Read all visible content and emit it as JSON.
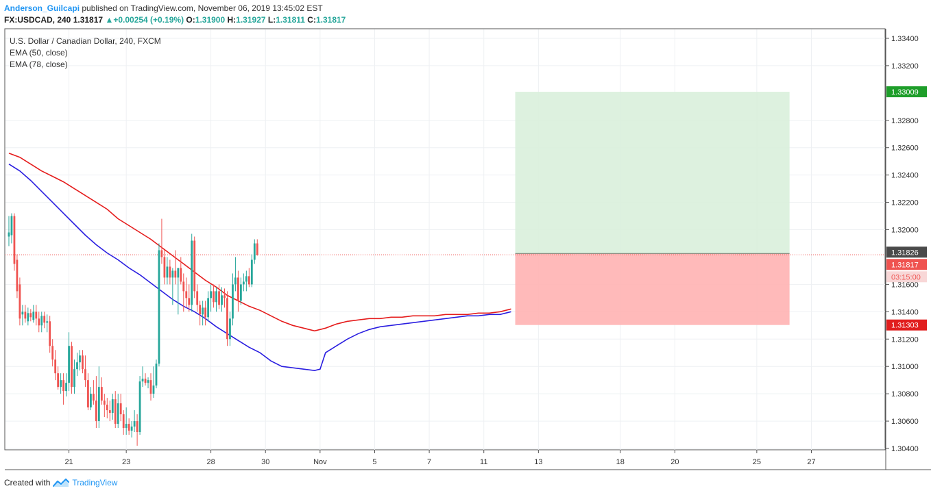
{
  "header": {
    "author": "Anderson_Guilcapi",
    "published": " published on TradingView.com, November 06, 2019 13:45:02 EST",
    "symbol": "FX:USDCAD, 240",
    "last": "1.31817",
    "change": "+0.00254 (+0.19%)",
    "o_label": "O:",
    "o_val": "1.31900",
    "h_label": "H:",
    "h_val": "1.31927",
    "l_label": "L:",
    "l_val": "1.31811",
    "c_label": "C:",
    "c_val": "1.31817"
  },
  "legend": {
    "title": "U.S. Dollar / Canadian Dollar, 240, FXCM",
    "ema50": "EMA (50, close)",
    "ema78": "EMA (78, close)"
  },
  "footer": {
    "created": "Created with",
    "brand": "TradingView"
  },
  "colors": {
    "up": "#26a69a",
    "down": "#ef5350",
    "ema50": "#2a1ee0",
    "ema78": "#e51c1c",
    "profit": "#d9f0dc",
    "loss": "#ffb3b3",
    "grid": "#eef0f3"
  },
  "chart_data": {
    "type": "candlestick",
    "title": "U.S. Dollar / Canadian Dollar, 240, FXCM",
    "ylim": [
      1.3039,
      1.3347
    ],
    "y_ticks": [
      "1.33400",
      "1.33200",
      "1.32800",
      "1.32600",
      "1.32400",
      "1.32200",
      "1.32000",
      "1.31600",
      "1.31400",
      "1.31200",
      "1.31000",
      "1.30800",
      "1.30600",
      "1.30400"
    ],
    "x_ticks": [
      {
        "label": "21",
        "i": 22
      },
      {
        "label": "23",
        "i": 43
      },
      {
        "label": "28",
        "i": 74
      },
      {
        "label": "30",
        "i": 94
      },
      {
        "label": "Nov",
        "i": 114
      },
      {
        "label": "5",
        "i": 134
      },
      {
        "label": "7",
        "i": 154
      },
      {
        "label": "11",
        "i": 174
      },
      {
        "label": "13",
        "i": 194
      },
      {
        "label": "18",
        "i": 224
      },
      {
        "label": "20",
        "i": 244
      },
      {
        "label": "25",
        "i": 274
      },
      {
        "label": "27",
        "i": 294
      }
    ],
    "x_range": [
      -1.5,
      321
    ],
    "candles": [
      [
        1.3195,
        1.321,
        1.3188,
        1.3198
      ],
      [
        1.3196,
        1.3212,
        1.319,
        1.321
      ],
      [
        1.321,
        1.3212,
        1.317,
        1.3175
      ],
      [
        1.3178,
        1.3182,
        1.315,
        1.3155
      ],
      [
        1.316,
        1.3165,
        1.313,
        1.3135
      ],
      [
        1.3138,
        1.3145,
        1.313,
        1.314
      ],
      [
        1.314,
        1.3145,
        1.3132,
        1.3135
      ],
      [
        1.3133,
        1.3143,
        1.313,
        1.3139
      ],
      [
        1.3139,
        1.3142,
        1.3133,
        1.3136
      ],
      [
        1.3134,
        1.3145,
        1.3132,
        1.314
      ],
      [
        1.314,
        1.3145,
        1.313,
        1.3135
      ],
      [
        1.3135,
        1.314,
        1.3125,
        1.313
      ],
      [
        1.313,
        1.314,
        1.3125,
        1.3137
      ],
      [
        1.3137,
        1.314,
        1.3128,
        1.3132
      ],
      [
        1.3132,
        1.3138,
        1.3125,
        1.3133
      ],
      [
        1.3133,
        1.3137,
        1.311,
        1.3115
      ],
      [
        1.3115,
        1.312,
        1.31,
        1.3105
      ],
      [
        1.3105,
        1.3112,
        1.309,
        1.3095
      ],
      [
        1.3095,
        1.31,
        1.3083,
        1.3085
      ],
      [
        1.3085,
        1.3095,
        1.308,
        1.309
      ],
      [
        1.309,
        1.3095,
        1.3072,
        1.3082
      ],
      [
        1.3082,
        1.3095,
        1.3078,
        1.3088
      ],
      [
        1.3088,
        1.3125,
        1.3082,
        1.3115
      ],
      [
        1.3115,
        1.3118,
        1.308,
        1.3085
      ],
      [
        1.3085,
        1.3105,
        1.308,
        1.3098
      ],
      [
        1.3098,
        1.311,
        1.3093,
        1.3103
      ],
      [
        1.3103,
        1.3112,
        1.3097,
        1.3108
      ],
      [
        1.3108,
        1.3112,
        1.3095,
        1.3098
      ],
      [
        1.3098,
        1.3108,
        1.3085,
        1.309
      ],
      [
        1.309,
        1.3095,
        1.3068,
        1.307
      ],
      [
        1.307,
        1.3085,
        1.3068,
        1.308
      ],
      [
        1.308,
        1.309,
        1.3072,
        1.3075
      ],
      [
        1.3075,
        1.3093,
        1.3055,
        1.306
      ],
      [
        1.306,
        1.31,
        1.3055,
        1.3085
      ],
      [
        1.3085,
        1.3092,
        1.3072,
        1.3075
      ],
      [
        1.3075,
        1.308,
        1.3063,
        1.3072
      ],
      [
        1.3072,
        1.3077,
        1.3062,
        1.3068
      ],
      [
        1.3068,
        1.3075,
        1.306,
        1.3066
      ],
      [
        1.3066,
        1.308,
        1.3061,
        1.3076
      ],
      [
        1.3076,
        1.3082,
        1.3055,
        1.3058
      ],
      [
        1.3058,
        1.308,
        1.3055,
        1.3073
      ],
      [
        1.3073,
        1.308,
        1.306,
        1.3065
      ],
      [
        1.3065,
        1.3068,
        1.305,
        1.3055
      ],
      [
        1.3055,
        1.307,
        1.305,
        1.3058
      ],
      [
        1.3058,
        1.3062,
        1.305,
        1.3053
      ],
      [
        1.3053,
        1.306,
        1.3048,
        1.3056
      ],
      [
        1.3056,
        1.3068,
        1.3052,
        1.306
      ],
      [
        1.306,
        1.3065,
        1.3042,
        1.3052
      ],
      [
        1.3052,
        1.3093,
        1.305,
        1.3089
      ],
      [
        1.3089,
        1.31,
        1.3085,
        1.3091
      ],
      [
        1.3091,
        1.3095,
        1.3086,
        1.3088
      ],
      [
        1.3088,
        1.3092,
        1.3084,
        1.309
      ],
      [
        1.309,
        1.3095,
        1.3075,
        1.308
      ],
      [
        1.308,
        1.31,
        1.3077,
        1.3086
      ],
      [
        1.3086,
        1.3105,
        1.3084,
        1.3102
      ],
      [
        1.3102,
        1.319,
        1.31,
        1.3185
      ],
      [
        1.3185,
        1.3208,
        1.3175,
        1.318
      ],
      [
        1.318,
        1.3185,
        1.316,
        1.3165
      ],
      [
        1.3165,
        1.318,
        1.316,
        1.3173
      ],
      [
        1.3173,
        1.3178,
        1.316,
        1.3165
      ],
      [
        1.3165,
        1.3172,
        1.3145,
        1.317
      ],
      [
        1.317,
        1.3185,
        1.316,
        1.3165
      ],
      [
        1.3165,
        1.3172,
        1.3138,
        1.3172
      ],
      [
        1.3172,
        1.318,
        1.316,
        1.3162
      ],
      [
        1.3162,
        1.3168,
        1.314,
        1.3155
      ],
      [
        1.3155,
        1.3165,
        1.3143,
        1.315
      ],
      [
        1.315,
        1.316,
        1.314,
        1.3145
      ],
      [
        1.3145,
        1.3197,
        1.314,
        1.3192
      ],
      [
        1.3192,
        1.3195,
        1.315,
        1.3155
      ],
      [
        1.3155,
        1.316,
        1.314,
        1.3145
      ],
      [
        1.3145,
        1.3148,
        1.313,
        1.3138
      ],
      [
        1.3138,
        1.3148,
        1.313,
        1.3143
      ],
      [
        1.3143,
        1.3148,
        1.313,
        1.3136
      ],
      [
        1.3136,
        1.3155,
        1.3133,
        1.315
      ],
      [
        1.315,
        1.316,
        1.314,
        1.3155
      ],
      [
        1.3155,
        1.316,
        1.3143,
        1.3147
      ],
      [
        1.3147,
        1.3158,
        1.314,
        1.3155
      ],
      [
        1.3155,
        1.316,
        1.3142,
        1.3145
      ],
      [
        1.3145,
        1.3158,
        1.314,
        1.3152
      ],
      [
        1.3152,
        1.3157,
        1.3143,
        1.315
      ],
      [
        1.315,
        1.3155,
        1.3115,
        1.312
      ],
      [
        1.312,
        1.314,
        1.3115,
        1.3135
      ],
      [
        1.3135,
        1.3168,
        1.313,
        1.316
      ],
      [
        1.316,
        1.318,
        1.3155,
        1.3165
      ],
      [
        1.3165,
        1.317,
        1.314,
        1.3148
      ],
      [
        1.3148,
        1.3165,
        1.3145,
        1.316
      ],
      [
        1.316,
        1.3168,
        1.3155,
        1.3162
      ],
      [
        1.3162,
        1.317,
        1.3155,
        1.3166
      ],
      [
        1.3166,
        1.3172,
        1.3158,
        1.316
      ],
      [
        1.316,
        1.3182,
        1.3158,
        1.3178
      ],
      [
        1.3178,
        1.3193,
        1.3175,
        1.319
      ],
      [
        1.319,
        1.3193,
        1.3181,
        1.31817
      ]
    ],
    "ema50": [
      [
        0,
        1.3248
      ],
      [
        4,
        1.3243
      ],
      [
        8,
        1.3236
      ],
      [
        12,
        1.3228
      ],
      [
        16,
        1.322
      ],
      [
        20,
        1.3212
      ],
      [
        24,
        1.3204
      ],
      [
        28,
        1.3196
      ],
      [
        32,
        1.3189
      ],
      [
        36,
        1.3183
      ],
      [
        40,
        1.3178
      ],
      [
        44,
        1.3172
      ],
      [
        48,
        1.3167
      ],
      [
        52,
        1.3161
      ],
      [
        56,
        1.3155
      ],
      [
        60,
        1.3149
      ],
      [
        64,
        1.3144
      ],
      [
        68,
        1.314
      ],
      [
        72,
        1.3135
      ],
      [
        76,
        1.3129
      ],
      [
        80,
        1.3124
      ],
      [
        84,
        1.3119
      ],
      [
        88,
        1.3114
      ],
      [
        92,
        1.311
      ],
      [
        96,
        1.3104
      ],
      [
        100,
        1.31
      ],
      [
        104,
        1.3099
      ],
      [
        108,
        1.3098
      ],
      [
        112,
        1.3097
      ],
      [
        114,
        1.3098
      ],
      [
        116,
        1.311
      ],
      [
        120,
        1.3115
      ],
      [
        124,
        1.312
      ],
      [
        128,
        1.3124
      ],
      [
        132,
        1.3127
      ],
      [
        136,
        1.3129
      ],
      [
        140,
        1.313
      ],
      [
        144,
        1.3131
      ],
      [
        148,
        1.3132
      ],
      [
        152,
        1.3133
      ],
      [
        156,
        1.3134
      ],
      [
        160,
        1.3135
      ],
      [
        164,
        1.3136
      ],
      [
        168,
        1.3137
      ],
      [
        172,
        1.3137
      ],
      [
        176,
        1.3138
      ],
      [
        180,
        1.3138
      ],
      [
        184,
        1.314
      ]
    ],
    "ema78": [
      [
        0,
        1.3256
      ],
      [
        4,
        1.3253
      ],
      [
        8,
        1.3248
      ],
      [
        12,
        1.3243
      ],
      [
        16,
        1.3239
      ],
      [
        20,
        1.3235
      ],
      [
        24,
        1.323
      ],
      [
        28,
        1.3225
      ],
      [
        32,
        1.322
      ],
      [
        36,
        1.3215
      ],
      [
        40,
        1.3208
      ],
      [
        44,
        1.3203
      ],
      [
        48,
        1.3198
      ],
      [
        52,
        1.3193
      ],
      [
        56,
        1.3187
      ],
      [
        60,
        1.3181
      ],
      [
        64,
        1.3175
      ],
      [
        68,
        1.3169
      ],
      [
        72,
        1.3163
      ],
      [
        76,
        1.3158
      ],
      [
        80,
        1.3152
      ],
      [
        84,
        1.3148
      ],
      [
        88,
        1.3144
      ],
      [
        92,
        1.3141
      ],
      [
        96,
        1.3137
      ],
      [
        100,
        1.3133
      ],
      [
        104,
        1.313
      ],
      [
        108,
        1.3128
      ],
      [
        112,
        1.3126
      ],
      [
        116,
        1.3128
      ],
      [
        120,
        1.3131
      ],
      [
        124,
        1.3133
      ],
      [
        128,
        1.3134
      ],
      [
        132,
        1.3135
      ],
      [
        136,
        1.3135
      ],
      [
        140,
        1.3136
      ],
      [
        144,
        1.3136
      ],
      [
        148,
        1.3137
      ],
      [
        152,
        1.3137
      ],
      [
        156,
        1.3137
      ],
      [
        160,
        1.3138
      ],
      [
        164,
        1.3138
      ],
      [
        168,
        1.3138
      ],
      [
        172,
        1.3139
      ],
      [
        176,
        1.3139
      ],
      [
        180,
        1.314
      ],
      [
        184,
        1.3142
      ]
    ],
    "position": {
      "start_index": 185.5,
      "end_index": 286,
      "entry": 1.31826,
      "target": 1.33009,
      "stop": 1.31303
    },
    "price_labels": {
      "target": "1.33009",
      "entry": "1.31826",
      "last": "1.31817",
      "countdown": "03:15:00",
      "stop": "1.31303"
    }
  }
}
